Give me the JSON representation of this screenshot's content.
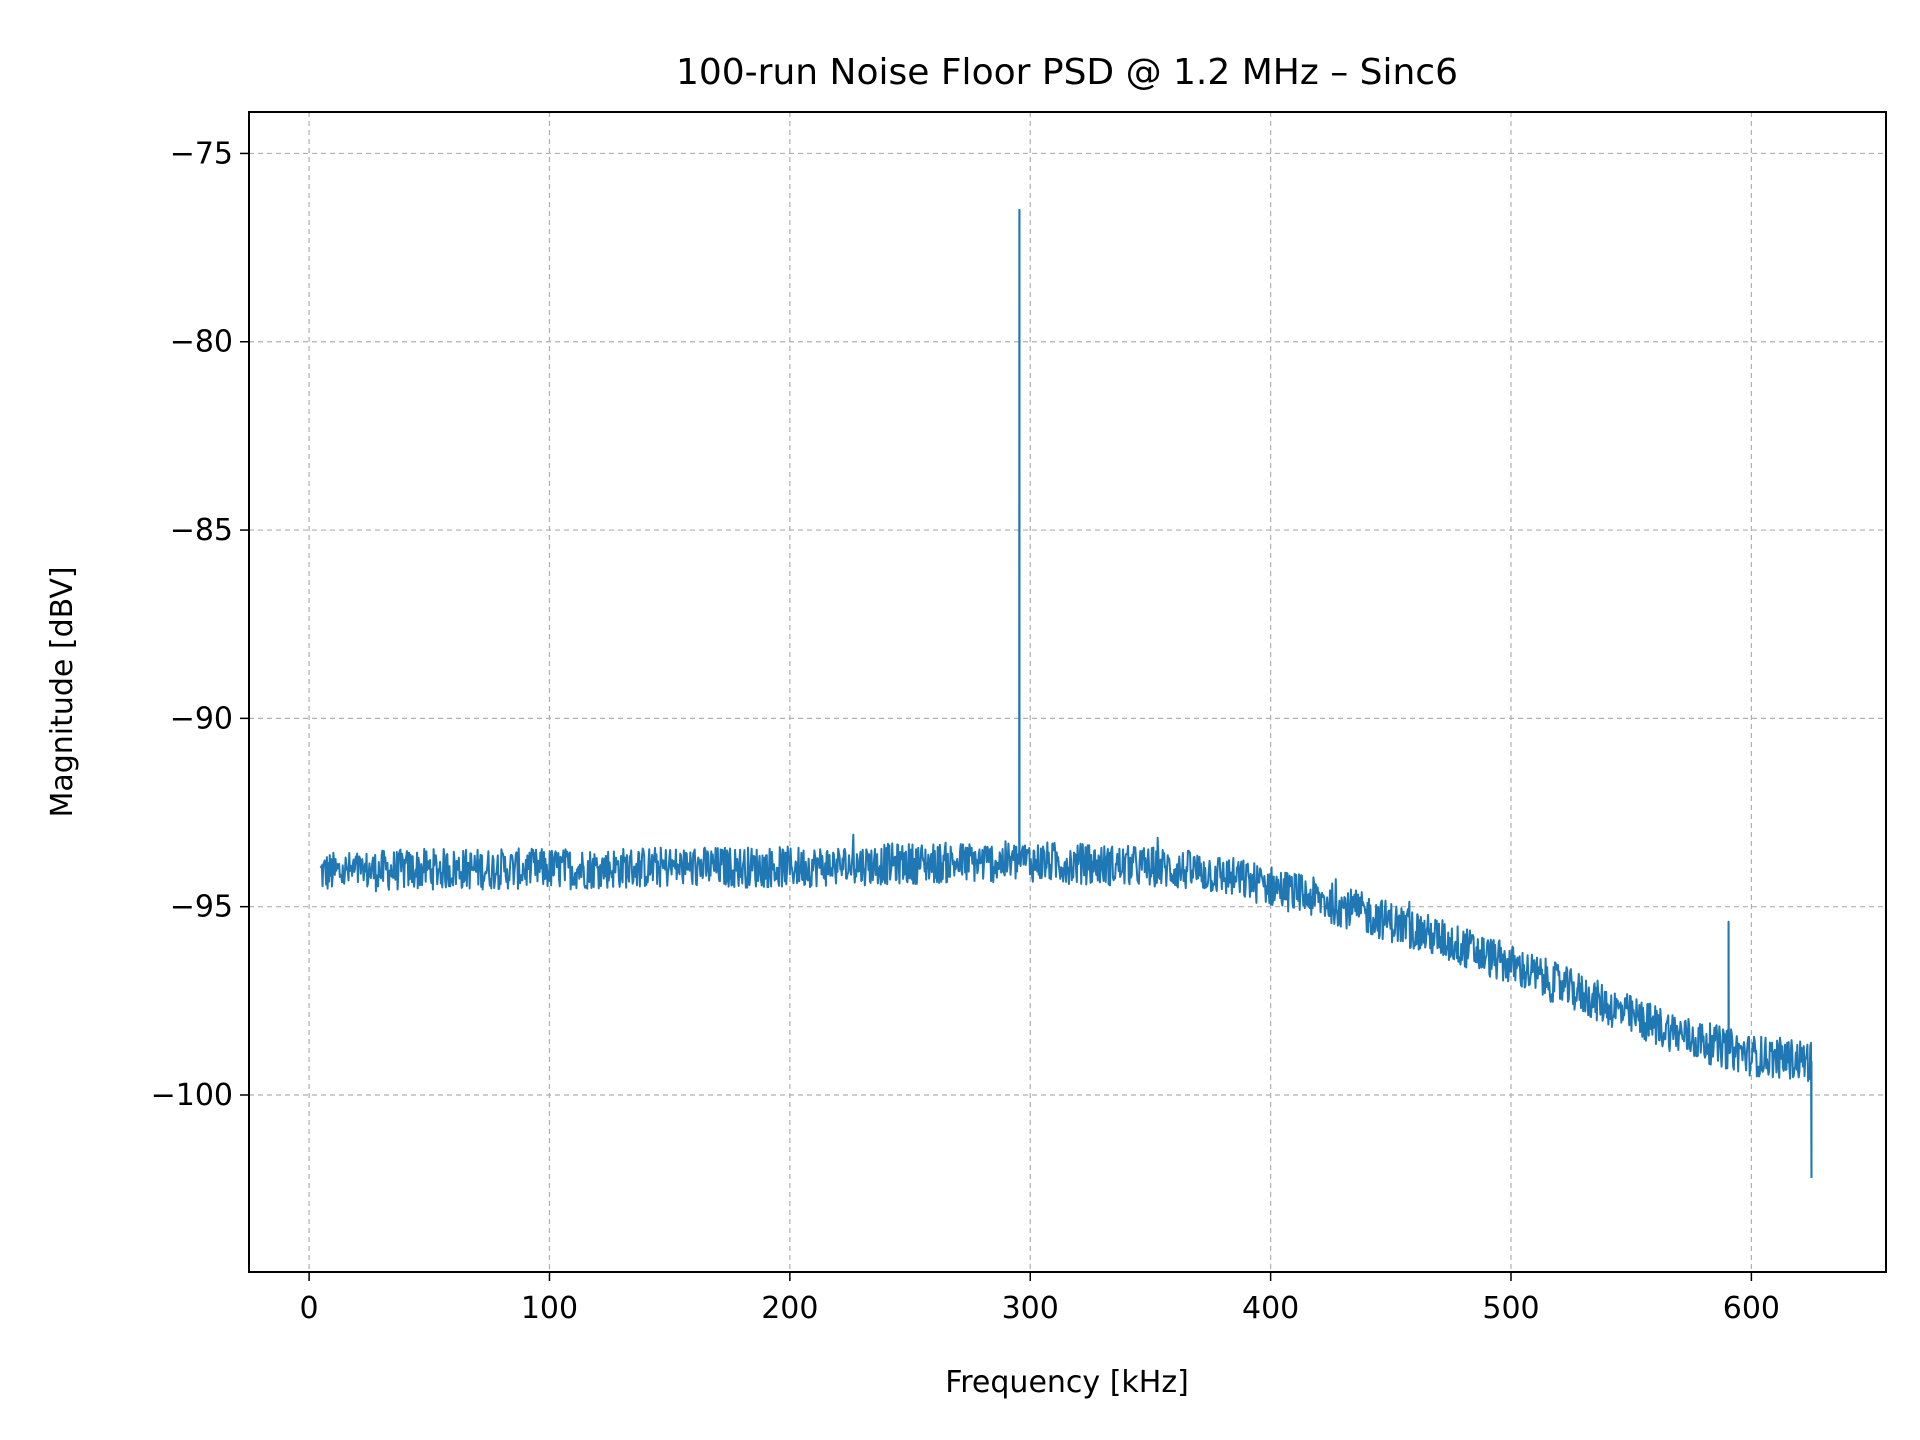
{
  "chart_data": {
    "type": "line",
    "title": "100-run Noise Floor PSD @ 1.2 MHz – Sinc6",
    "xlabel": "Frequency [kHz]",
    "ylabel": "Magnitude [dBV]",
    "xlim": [
      -25,
      656
    ],
    "ylim": [
      -104.7,
      -73.9
    ],
    "xticks": [
      0,
      100,
      200,
      300,
      400,
      500,
      600
    ],
    "xtick_labels": [
      "0",
      "100",
      "200",
      "300",
      "400",
      "500",
      "600"
    ],
    "yticks": [
      -100,
      -95,
      -90,
      -85,
      -80,
      -75
    ],
    "ytick_labels": [
      "−100",
      "−95",
      "−90",
      "−85",
      "−80",
      "−75"
    ],
    "grid": true,
    "line_color": "#1f77b4",
    "series": [
      {
        "x_start": 4.7,
        "x_end": 625,
        "x_step": 0.3,
        "noise_floor": [
          [
            4.7,
            -94.1
          ],
          [
            50,
            -94.0
          ],
          [
            100,
            -94.0
          ],
          [
            150,
            -93.95
          ],
          [
            200,
            -93.95
          ],
          [
            250,
            -93.85
          ],
          [
            300,
            -93.8
          ],
          [
            350,
            -93.95
          ],
          [
            375,
            -94.1
          ],
          [
            400,
            -94.45
          ],
          [
            425,
            -94.9
          ],
          [
            450,
            -95.4
          ],
          [
            475,
            -95.95
          ],
          [
            500,
            -96.55
          ],
          [
            525,
            -97.2
          ],
          [
            550,
            -97.9
          ],
          [
            575,
            -98.5
          ],
          [
            600,
            -98.95
          ],
          [
            625,
            -99.1
          ]
        ],
        "noise_ripple_db": 0.55,
        "spikes": [
          {
            "x": 295.5,
            "y": -76.5
          },
          {
            "x": 590.5,
            "y": -95.4
          },
          {
            "x": 625,
            "y": -102.2
          }
        ]
      }
    ]
  }
}
